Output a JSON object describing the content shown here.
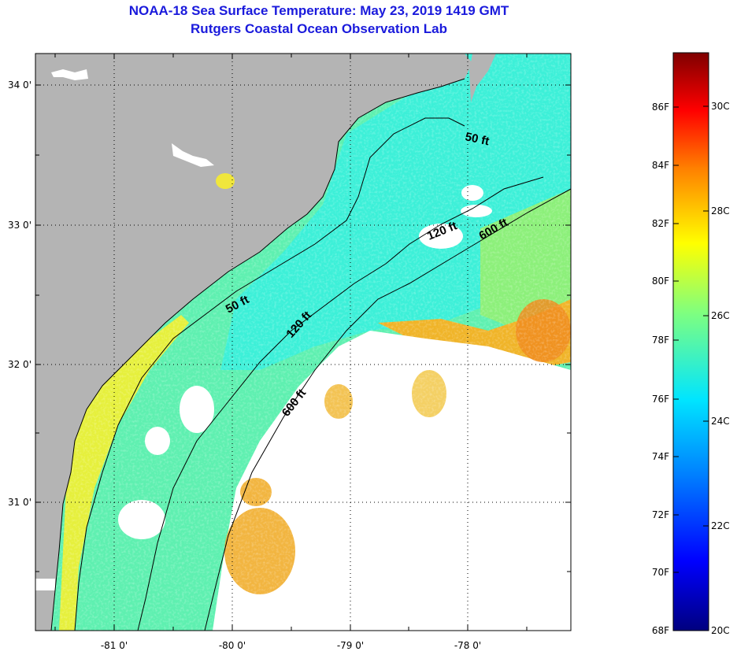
{
  "header": {
    "title": "NOAA-18 Sea Surface Temperature:  May 23, 2019 1419 GMT",
    "subtitle": "Rutgers Coastal Ocean Observation Lab"
  },
  "map": {
    "lon_labels": [
      "-81 0'",
      "-80 0'",
      "-79 0'",
      "-78 0'"
    ],
    "lat_labels": [
      "34 0'",
      "33 0'",
      "32 0'",
      "31 0'"
    ],
    "contour_labels": [
      "50 ft",
      "120 ft",
      "600 ft",
      "50 ft",
      "120 ft",
      "600 ft"
    ],
    "colors": {
      "land": "#b4b4b4",
      "cloud": "#ffffff",
      "water_cool": "#3cf0d2",
      "water_mid": "#78f08c",
      "water_warm": "#e6f03c",
      "water_hot": "#f0a01e"
    }
  },
  "colorbar": {
    "fahrenheit_labels": [
      "86F",
      "84F",
      "82F",
      "80F",
      "78F",
      "76F",
      "74F",
      "72F",
      "70F",
      "68F"
    ],
    "celsius_labels": [
      "30C",
      "28C",
      "26C",
      "24C",
      "22C",
      "20C"
    ],
    "gradient_stops": [
      "#00007f",
      "#0000ff",
      "#0080ff",
      "#00e5ff",
      "#7fff7f",
      "#ffff00",
      "#ff8000",
      "#ff0000",
      "#7f0000"
    ]
  }
}
